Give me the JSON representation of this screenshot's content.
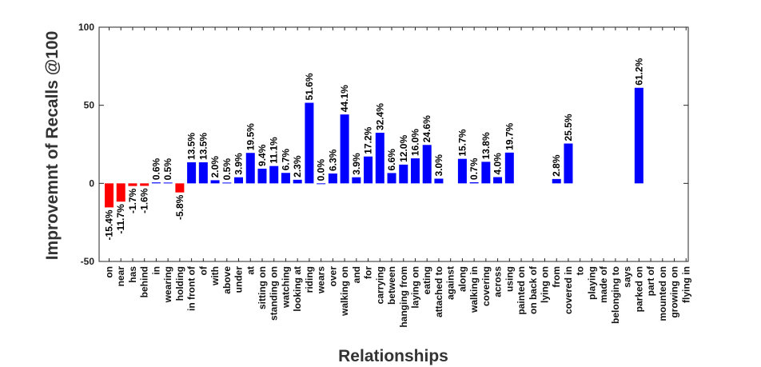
{
  "chart_data": {
    "type": "bar",
    "title": "",
    "xlabel": "Relationships",
    "ylabel": "Improvemnt of Recalls @100",
    "ylim": [
      -50,
      100
    ],
    "yticks": [
      -50,
      0,
      50,
      100
    ],
    "grid": false,
    "colors": {
      "positive": "#0000ff",
      "negative": "#ff0000"
    },
    "categories": [
      "on",
      "near",
      "has",
      "behind",
      "in",
      "wearing",
      "holding",
      "in front of",
      "of",
      "with",
      "above",
      "under",
      "at",
      "sitting on",
      "standing on",
      "watching",
      "looking at",
      "riding",
      "wears",
      "over",
      "walking on",
      "and",
      "for",
      "carrying",
      "between",
      "hanging from",
      "laying on",
      "eating",
      "attached to",
      "against",
      "along",
      "walking in",
      "covering",
      "across",
      "using",
      "painted on",
      "on back of",
      "lying on",
      "from",
      "covered in",
      "to",
      "playing",
      "made of",
      "belonging to",
      "says",
      "parked on",
      "part of",
      "mounted on",
      "growing on",
      "flying in"
    ],
    "values": [
      -15.4,
      -11.7,
      -1.7,
      -1.6,
      0.6,
      0.5,
      -5.8,
      13.5,
      13.5,
      2.0,
      0.5,
      3.9,
      19.5,
      9.4,
      11.1,
      6.7,
      2.3,
      51.6,
      0.0,
      6.3,
      44.1,
      3.9,
      17.2,
      32.4,
      6.6,
      12.0,
      16.0,
      24.6,
      3.0,
      null,
      15.7,
      0.7,
      13.8,
      4.0,
      19.7,
      null,
      null,
      null,
      2.8,
      25.5,
      null,
      null,
      null,
      null,
      null,
      61.2,
      null,
      null,
      null,
      null
    ],
    "labels": [
      "-15.4%",
      "-11.7%",
      "-1.7%",
      "-1.6%",
      "0.6%",
      "0.5%",
      "-5.8%",
      "13.5%",
      "13.5%",
      "2.0%",
      "0.5%",
      "3.9%",
      "19.5%",
      "9.4%",
      "11.1%",
      "6.7%",
      "2.3%",
      "51.6%",
      "0.0%",
      "6.3%",
      "44.1%",
      "3.9%",
      "17.2%",
      "32.4%",
      "6.6%",
      "12.0%",
      "16.0%",
      "24.6%",
      "3.0%",
      "",
      "15.7%",
      "0.7%",
      "13.8%",
      "4.0%",
      "19.7%",
      "",
      "",
      "",
      "2.8%",
      "25.5%",
      "",
      "",
      "",
      "",
      "",
      "61.2%",
      "",
      "",
      "",
      ""
    ]
  }
}
